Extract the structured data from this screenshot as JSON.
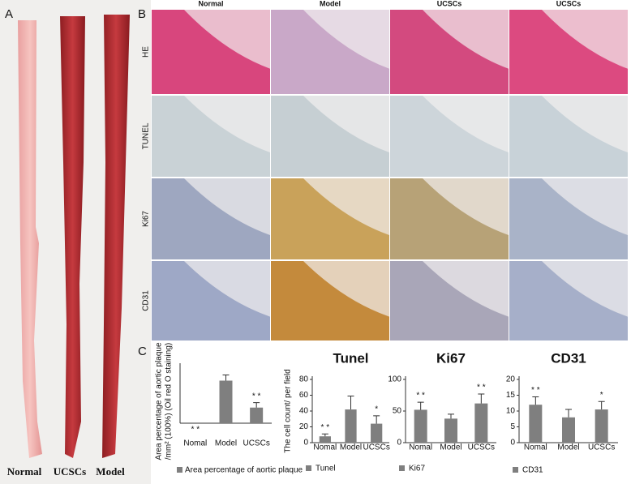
{
  "panels": {
    "a_label": "A",
    "b_label": "B",
    "c_label": "C",
    "aorta_labels": [
      "Normal",
      "UCSCs",
      "Model"
    ],
    "column_headers": [
      "Normal",
      "Model",
      "UCSCs",
      "UCSCs"
    ],
    "row_labels": [
      "HE",
      "TUNEL",
      "Ki67",
      "CD31"
    ]
  },
  "chart_data": [
    {
      "type": "bar",
      "ylabel": [
        "Area percentage of aortic plaque",
        "/mm² (100%) (Oil red O staining)"
      ],
      "categories": [
        "Nomal",
        "Model",
        "UCSCs"
      ],
      "values": [
        0,
        0.6,
        0.22
      ],
      "errors": [
        0,
        0.08,
        0.07
      ],
      "annotations": [
        "* *",
        null,
        "* *"
      ],
      "legend": "Area percentage of aortic plaque",
      "color": "#7f7f7f",
      "ylim": [
        0,
        0.8
      ]
    },
    {
      "type": "bar",
      "title": "Tunel",
      "ylabel": [
        "The cell count/ per field"
      ],
      "categories": [
        "Nomal",
        "Model",
        "UCSCs"
      ],
      "values": [
        8,
        42,
        24
      ],
      "errors": [
        3,
        17,
        10
      ],
      "annotations": [
        "* *",
        null,
        "*"
      ],
      "legend": "Tunel",
      "color": "#7f7f7f",
      "ylim": [
        0,
        80
      ],
      "yticks": [
        0,
        20,
        40,
        60,
        80
      ]
    },
    {
      "type": "bar",
      "title": "Ki67",
      "categories": [
        "Nomal",
        "Model",
        "UCSCs"
      ],
      "values": [
        52,
        38,
        62
      ],
      "errors": [
        12,
        7,
        15
      ],
      "annotations": [
        "* *",
        null,
        "* *"
      ],
      "legend": "Ki67",
      "color": "#7f7f7f",
      "ylim": [
        0,
        100
      ],
      "yticks": [
        0,
        50,
        100
      ]
    },
    {
      "type": "bar",
      "title": "CD31",
      "categories": [
        "Nomal",
        "Model",
        "UCSCs"
      ],
      "values": [
        12,
        8,
        10.5
      ],
      "errors": [
        2.5,
        2.5,
        2.5
      ],
      "annotations": [
        "* *",
        null,
        "*"
      ],
      "legend": "CD31",
      "color": "#7f7f7f",
      "ylim": [
        0,
        20
      ],
      "yticks": [
        0,
        5,
        10,
        15,
        20
      ]
    }
  ]
}
